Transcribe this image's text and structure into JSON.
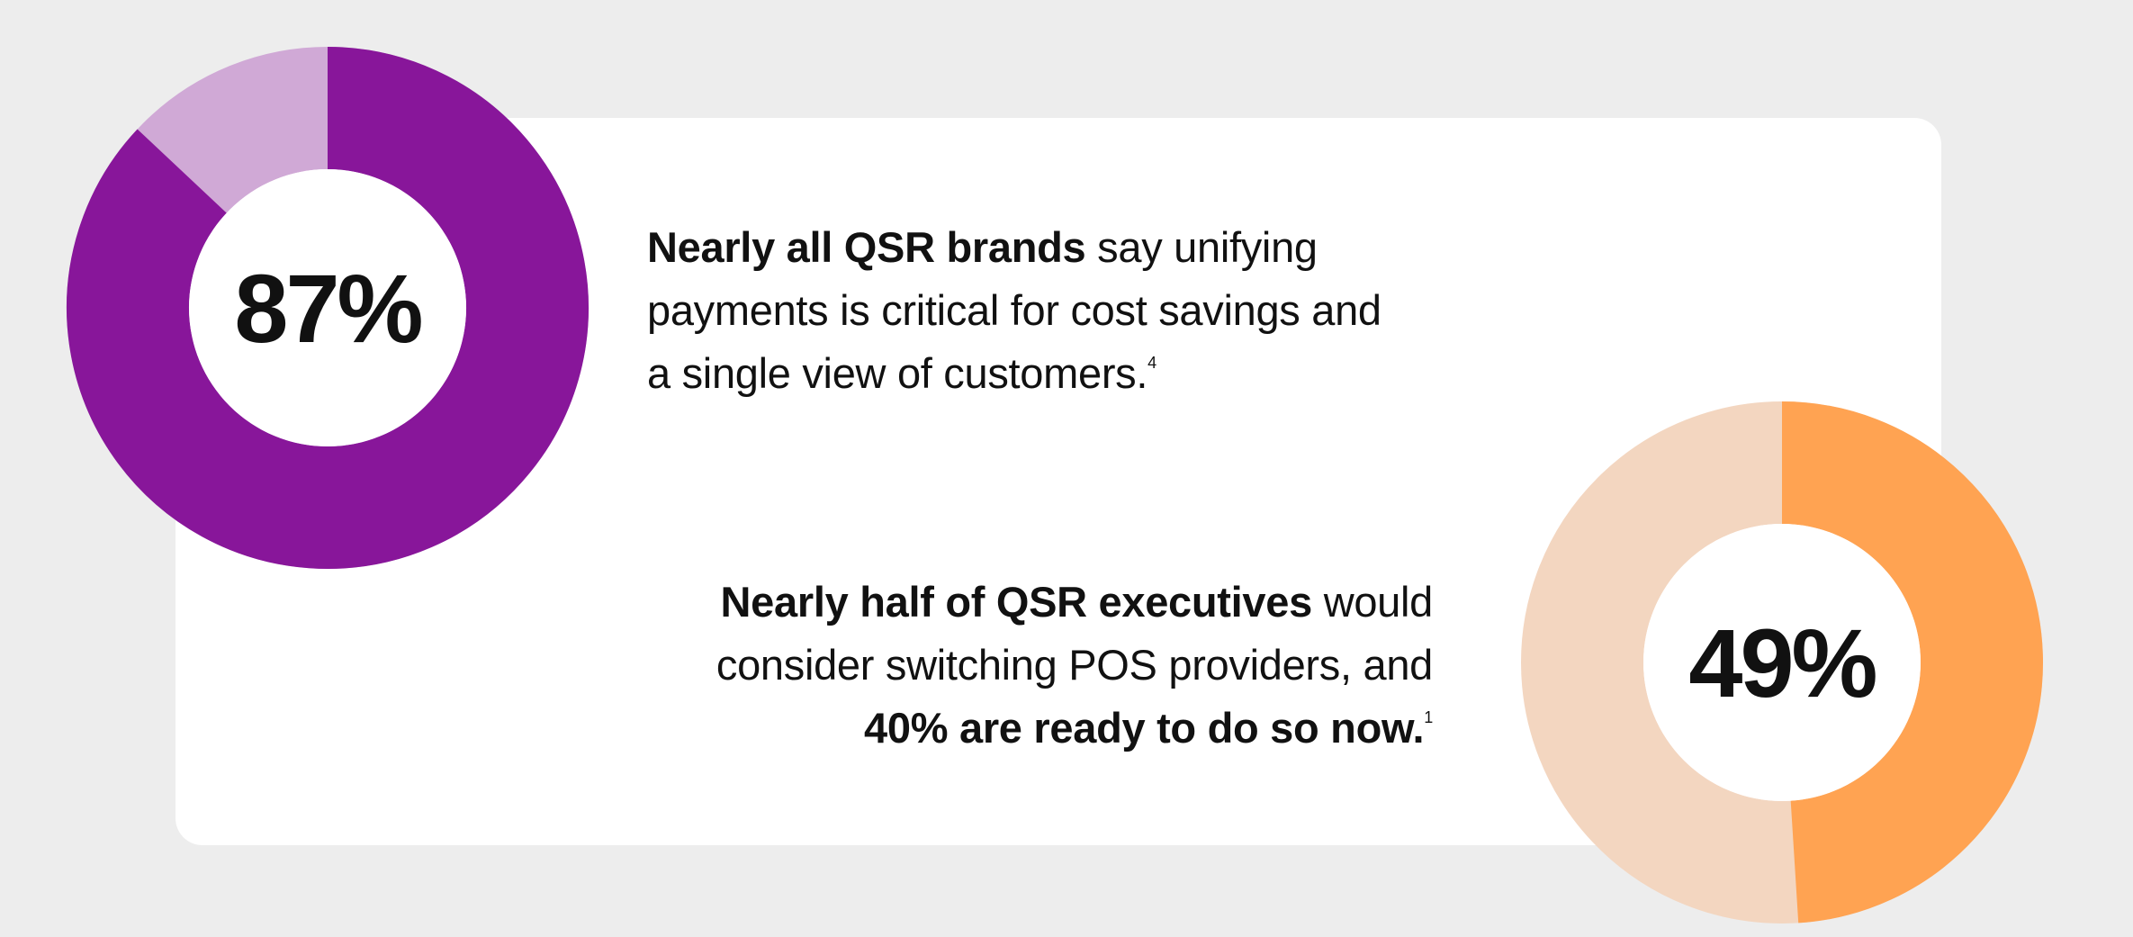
{
  "chart_data": [
    {
      "type": "donut",
      "values": [
        87
      ],
      "value_labels": [
        "87%"
      ],
      "color": "#88169a",
      "track_color": "#d0a9d6",
      "annotation": [
        {
          "text": "Nearly all QSR brands",
          "bold": true
        },
        {
          "text": " say unifying payments is critical for cost savings and a single view of customers."
        },
        {
          "text": "4",
          "sup": true
        }
      ]
    },
    {
      "type": "donut",
      "values": [
        49
      ],
      "value_labels": [
        "49%"
      ],
      "color": "#ffa352",
      "track_color": "#f3d6c0",
      "annotation": [
        {
          "text": "Nearly half of QSR executives",
          "bold": true
        },
        {
          "text": " would consider switching POS providers, and "
        },
        {
          "text": "40% are ready to do so now.",
          "bold": true
        },
        {
          "text": "1",
          "sup": true
        }
      ]
    }
  ]
}
